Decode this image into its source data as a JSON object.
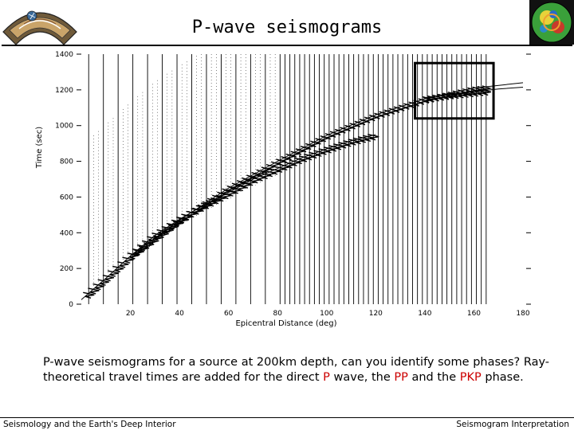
{
  "slide": {
    "title": "P-wave seismograms",
    "caption": {
      "part1": "P-wave seismograms for a source at 200km depth, can you identify some phases? Ray-theoretical travel times are added for the direct ",
      "p": "P",
      "part2": " wave, the ",
      "pp": "PP",
      "part3": " and the ",
      "pkp": "PKP",
      "part4": " phase."
    },
    "footer_left": "Seismology and the Earth's Deep Interior",
    "footer_right": "Seismogram Interpretation",
    "colors": {
      "phase_highlight": "#cc0000",
      "axis": "#000000"
    },
    "logos": {
      "left": "earth-cross-section-logo",
      "right": "tomography-globe-logo"
    }
  },
  "chart_data": {
    "type": "line",
    "xlabel": "Epicentral Distance (deg)",
    "ylabel": "Time (sec)",
    "xlim": [
      0,
      180
    ],
    "ylim": [
      0,
      1400
    ],
    "x_ticks": [
      20,
      40,
      60,
      80,
      100,
      120,
      140,
      160,
      180
    ],
    "y_ticks": [
      0,
      200,
      400,
      600,
      800,
      1000,
      1200,
      1400
    ],
    "x_tick_labels": [
      "20",
      "40",
      "60",
      "80",
      "100",
      "120",
      "140",
      "160",
      "180"
    ],
    "y_tick_labels": [
      "0",
      "200",
      "400",
      "600",
      "800",
      "1000",
      "1200",
      "1400"
    ],
    "series": [
      {
        "name": "P",
        "x": [
          0,
          10,
          20,
          30,
          40,
          50,
          60,
          70,
          80,
          90,
          100,
          110,
          120
        ],
        "y": [
          25,
          145,
          270,
          385,
          475,
          555,
          625,
          700,
          760,
          820,
          870,
          915,
          950
        ]
      },
      {
        "name": "PP",
        "x": [
          20,
          40,
          60,
          80,
          100,
          120,
          140,
          160,
          180
        ],
        "y": [
          270,
          470,
          650,
          800,
          945,
          1060,
          1150,
          1210,
          1240
        ]
      },
      {
        "name": "PKP",
        "x": [
          140,
          150,
          160,
          170,
          180
        ],
        "y": [
          1155,
          1175,
          1190,
          1205,
          1215
        ]
      }
    ],
    "seismogram_distances": [
      3,
      5,
      7,
      9,
      11,
      13,
      15,
      17,
      19,
      21,
      23,
      25,
      27,
      29,
      31,
      33,
      35,
      37,
      39,
      41,
      43,
      45,
      47,
      49,
      51,
      53,
      55,
      57,
      59,
      61,
      63,
      65,
      67,
      69,
      71,
      73,
      75,
      77,
      79,
      81,
      83,
      85,
      87,
      89,
      91,
      93,
      95,
      97,
      99,
      101,
      103,
      105,
      107,
      109,
      111,
      113,
      115,
      117,
      119,
      121,
      123,
      125,
      127,
      129,
      131,
      133,
      135,
      137,
      139,
      141,
      143,
      145,
      147,
      149,
      151,
      153,
      155,
      157,
      159,
      161,
      163,
      165
    ],
    "highlight_box": {
      "x": [
        136,
        168
      ],
      "y": [
        1040,
        1350
      ]
    }
  }
}
